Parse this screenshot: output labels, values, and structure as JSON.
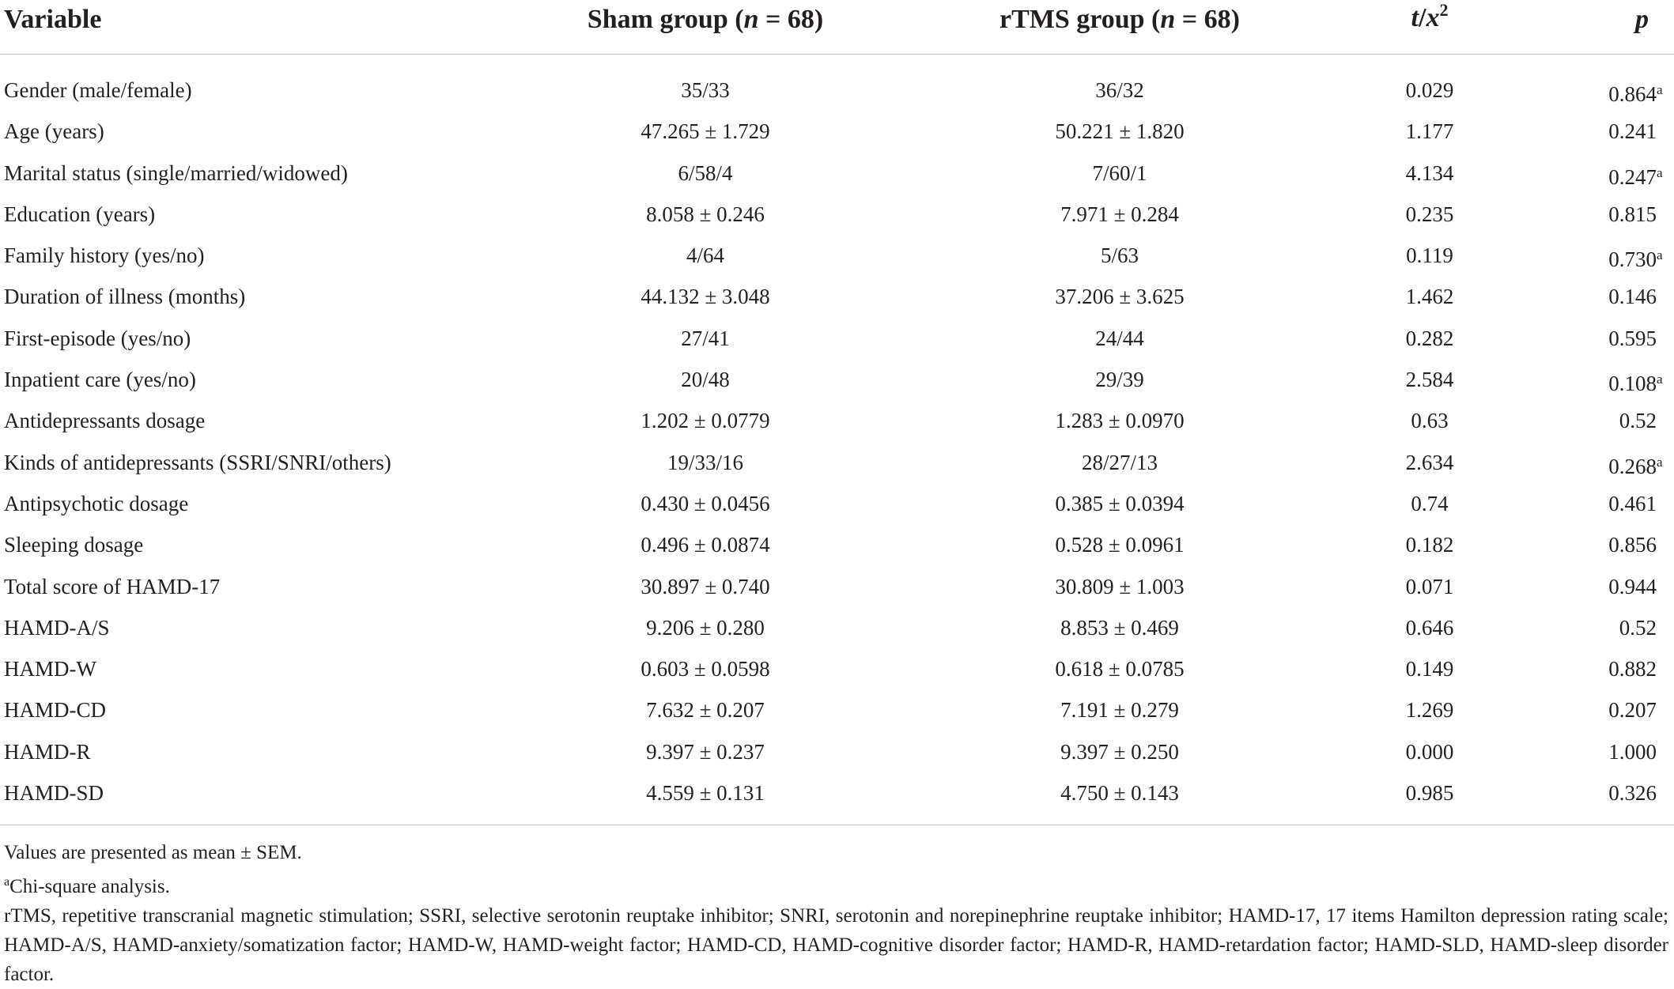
{
  "table": {
    "headers": {
      "variable": "Variable",
      "sham": "Sham group (",
      "sham_n": "n",
      "sham_tail": " = 68)",
      "rtms": "rTMS group (",
      "rtms_n": "n",
      "rtms_tail": " = 68)",
      "stat_t": "t",
      "stat_slash": "/",
      "stat_x": "x",
      "stat_sup": "2",
      "p": "p"
    },
    "rows": [
      {
        "variable": "Gender (male/female)",
        "sham": "35/33",
        "rtms": "36/32",
        "stat": "0.029",
        "p": "0.864",
        "p_note": "a"
      },
      {
        "variable": "Age (years)",
        "sham": "47.265 ± 1.729",
        "rtms": "50.221 ± 1.820",
        "stat": "1.177",
        "p": "0.241",
        "p_note": ""
      },
      {
        "variable": "Marital status (single/married/widowed)",
        "sham": "6/58/4",
        "rtms": "7/60/1",
        "stat": "4.134",
        "p": "0.247",
        "p_note": "a"
      },
      {
        "variable": "Education (years)",
        "sham": "8.058 ± 0.246",
        "rtms": "7.971 ± 0.284",
        "stat": "0.235",
        "p": "0.815",
        "p_note": ""
      },
      {
        "variable": "Family history (yes/no)",
        "sham": "4/64",
        "rtms": "5/63",
        "stat": "0.119",
        "p": "0.730",
        "p_note": "a"
      },
      {
        "variable": "Duration of illness (months)",
        "sham": "44.132 ± 3.048",
        "rtms": "37.206 ± 3.625",
        "stat": "1.462",
        "p": "0.146",
        "p_note": ""
      },
      {
        "variable": "First-episode (yes/no)",
        "sham": "27/41",
        "rtms": "24/44",
        "stat": "0.282",
        "p": "0.595",
        "p_note": ""
      },
      {
        "variable": "Inpatient care (yes/no)",
        "sham": "20/48",
        "rtms": "29/39",
        "stat": "2.584",
        "p": "0.108",
        "p_note": "a"
      },
      {
        "variable": "Antidepressants dosage",
        "sham": "1.202 ± 0.0779",
        "rtms": "1.283 ± 0.0970",
        "stat": "0.63",
        "p": "0.52",
        "p_note": ""
      },
      {
        "variable": "Kinds of antidepressants (SSRI/SNRI/others)",
        "sham": "19/33/16",
        "rtms": "28/27/13",
        "stat": "2.634",
        "p": "0.268",
        "p_note": "a"
      },
      {
        "variable": "Antipsychotic dosage",
        "sham": "0.430 ± 0.0456",
        "rtms": "0.385 ± 0.0394",
        "stat": "0.74",
        "p": "0.461",
        "p_note": ""
      },
      {
        "variable": "Sleeping dosage",
        "sham": "0.496 ± 0.0874",
        "rtms": "0.528 ± 0.0961",
        "stat": "0.182",
        "p": "0.856",
        "p_note": ""
      },
      {
        "variable": "Total score of HAMD-17",
        "sham": "30.897 ± 0.740",
        "rtms": "30.809 ± 1.003",
        "stat": "0.071",
        "p": "0.944",
        "p_note": ""
      },
      {
        "variable": "HAMD-A/S",
        "sham": "9.206 ± 0.280",
        "rtms": "8.853 ± 0.469",
        "stat": "0.646",
        "p": "0.52",
        "p_note": ""
      },
      {
        "variable": "HAMD-W",
        "sham": "0.603 ± 0.0598",
        "rtms": "0.618 ± 0.0785",
        "stat": "0.149",
        "p": "0.882",
        "p_note": ""
      },
      {
        "variable": "HAMD-CD",
        "sham": "7.632 ± 0.207",
        "rtms": "7.191 ± 0.279",
        "stat": "1.269",
        "p": "0.207",
        "p_note": ""
      },
      {
        "variable": "HAMD-R",
        "sham": "9.397 ± 0.237",
        "rtms": "9.397 ± 0.250",
        "stat": "0.000",
        "p": "1.000",
        "p_note": ""
      },
      {
        "variable": "HAMD-SD",
        "sham": "4.559 ± 0.131",
        "rtms": "4.750 ± 0.143",
        "stat": "0.985",
        "p": "0.326",
        "p_note": ""
      }
    ]
  },
  "footnotes": {
    "values": "Values are presented as mean ± SEM.",
    "chi_mark": "a",
    "chi": "Chi-square analysis.",
    "abbreviations": "rTMS, repetitive transcranial magnetic stimulation; SSRI, selective serotonin reuptake inhibitor; SNRI, serotonin and norepinephrine reuptake inhibitor; HAMD-17, 17 items Hamilton depression rating scale; HAMD-A/S, HAMD-anxiety/somatization factor; HAMD-W, HAMD-weight factor; HAMD-CD, HAMD-cognitive disorder factor; HAMD-R, HAMD-retardation factor; HAMD-SLD, HAMD-sleep disorder factor."
  }
}
